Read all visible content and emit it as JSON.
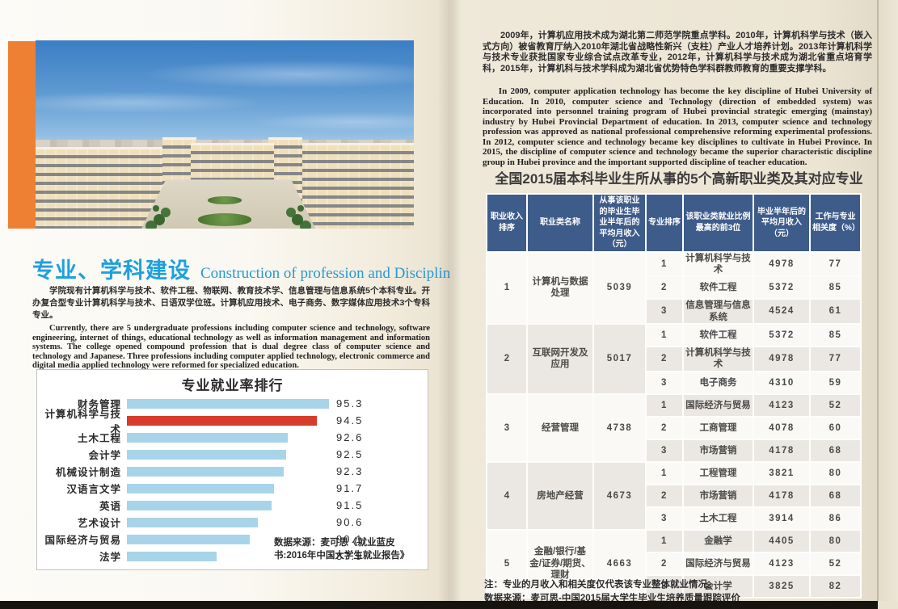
{
  "colors": {
    "accent_orange": "#ee8033",
    "heading_blue": "#1ea0dc",
    "table_header_blue": "#3e5c8a",
    "highlight_red_text": "#e05844",
    "bar_blue": "#a8d4e9",
    "bar_red": "#d63c2a"
  },
  "left": {
    "section_title_zh": "专业、学科建设",
    "section_title_en": "Construction of profession and Discipline",
    "para_zh": "学院现有计算机科学与技术、软件工程、物联网、教育技术学、信息管理与信息系统5个本科专业。开办复合型专业计算机科学与技术、日语双学位班。计算机应用技术、电子商务、数字媒体应用技术3个专科专业。",
    "para_en": "Currently, there are 5 undergraduate professions including computer science and technology, software engineering, internet of things, educational technology as well as information management and information systems. The college opened compound profession that is dual degree class of computer science and technology and Japanese. Three professions including computer applied technology, electronic commerce and digital media applied technology were reformed for specialized education."
  },
  "right": {
    "para_zh": "2009年，计算机应用技术成为湖北第二师范学院重点学科。2010年，计算机科学与技术（嵌入式方向）被省教育厅纳入2010年湖北省战略性新兴（支柱）产业人才培养计划。2013年计算机科学与技术专业获批国家专业综合试点改革专业，2012年，计算机科学与技术成为湖北省重点培育学科，2015年，计算机科与技术学科成为湖北省优势特色学科群教师教育的重要支撑学科。",
    "para_en": "In 2009, computer application technology has become the key discipline of Hubei University of Education. In 2010, computer science and Technology (direction of embedded system) was incorporated into personnel training program of Hubei provincial strategic emerging (mainstay) industry by Hubei Provincial Department of education. In 2013, computer science and technology profession was approved as national professional comprehensive reforming experimental professions. In 2012, computer science and technology became key disciplines to cultivate in Hubei Province. In 2015, the discipline of computer science and technology became the superior characteristic discipline group in Hubei province and the important supported discipline of teacher education.",
    "table_title": "全国2015届本科毕业生所从事的5个高新职业类及其对应专业",
    "table": {
      "headers": [
        "职业收入排序",
        "职业类名称",
        "从事该职业的毕业生毕业半年后的平均月收入（元）",
        "专业排序",
        "该职业类就业比例最高的前3位",
        "毕业半年后的平均月收入（元）",
        "工作与专业相关度（%）"
      ],
      "groups": [
        {
          "rank": "1",
          "name": "计算机与数据处理",
          "income": "5039",
          "highlight": true,
          "rows": [
            [
              "1",
              "计算机科学与技术",
              "4978",
              "77"
            ],
            [
              "2",
              "软件工程",
              "5372",
              "85"
            ],
            [
              "3",
              "信息管理与信息系统",
              "4524",
              "61"
            ]
          ]
        },
        {
          "rank": "2",
          "name": "互联网开发及应用",
          "income": "5017",
          "highlight": true,
          "rows": [
            [
              "1",
              "软件工程",
              "5372",
              "85"
            ],
            [
              "2",
              "计算机科学与技术",
              "4978",
              "77"
            ],
            [
              "3",
              "电子商务",
              "4310",
              "59"
            ]
          ]
        },
        {
          "rank": "3",
          "name": "经营管理",
          "income": "4738",
          "highlight": false,
          "rows": [
            [
              "1",
              "国际经济与贸易",
              "4123",
              "52"
            ],
            [
              "2",
              "工商管理",
              "4078",
              "60"
            ],
            [
              "3",
              "市场营销",
              "4178",
              "68"
            ]
          ]
        },
        {
          "rank": "4",
          "name": "房地产经营",
          "income": "4673",
          "highlight": false,
          "rows": [
            [
              "1",
              "工程管理",
              "3821",
              "80"
            ],
            [
              "2",
              "市场营销",
              "4178",
              "68"
            ],
            [
              "3",
              "土木工程",
              "3914",
              "86"
            ]
          ]
        },
        {
          "rank": "5",
          "name": "金融/银行/基金/证券/期货、理财",
          "income": "4663",
          "highlight": false,
          "rows": [
            [
              "1",
              "金融学",
              "4405",
              "80"
            ],
            [
              "2",
              "国际经济与贸易",
              "4123",
              "52"
            ],
            [
              "3",
              "会计学",
              "3825",
              "82"
            ]
          ]
        }
      ],
      "note1": "注：专业的月收入和相关度仅代表该专业整体就业情况。",
      "note2": "数据来源：麦可思-中国2015届大学生毕业生培养质量跟踪评价"
    }
  },
  "chart_data": {
    "type": "bar",
    "orientation": "horizontal",
    "title": "专业就业率排行",
    "categories": [
      "财务管理",
      "计算机科学与技术",
      "土木工程",
      "会计学",
      "机械设计制造",
      "汉语言文学",
      "英语",
      "艺术设计",
      "国际经济与贸易",
      "法学"
    ],
    "values": [
      95.3,
      94.5,
      92.6,
      92.5,
      92.3,
      91.7,
      91.5,
      90.6,
      90.1,
      87.9
    ],
    "highlight_index": 1,
    "bar_color": "#a8d4e9",
    "highlight_color": "#d63c2a",
    "xlim": [
      82,
      95.3
    ],
    "grid": false,
    "value_labels": true,
    "source": "数据来源：麦可思《就业蓝皮书:2016年中国大学生就业报告》"
  }
}
